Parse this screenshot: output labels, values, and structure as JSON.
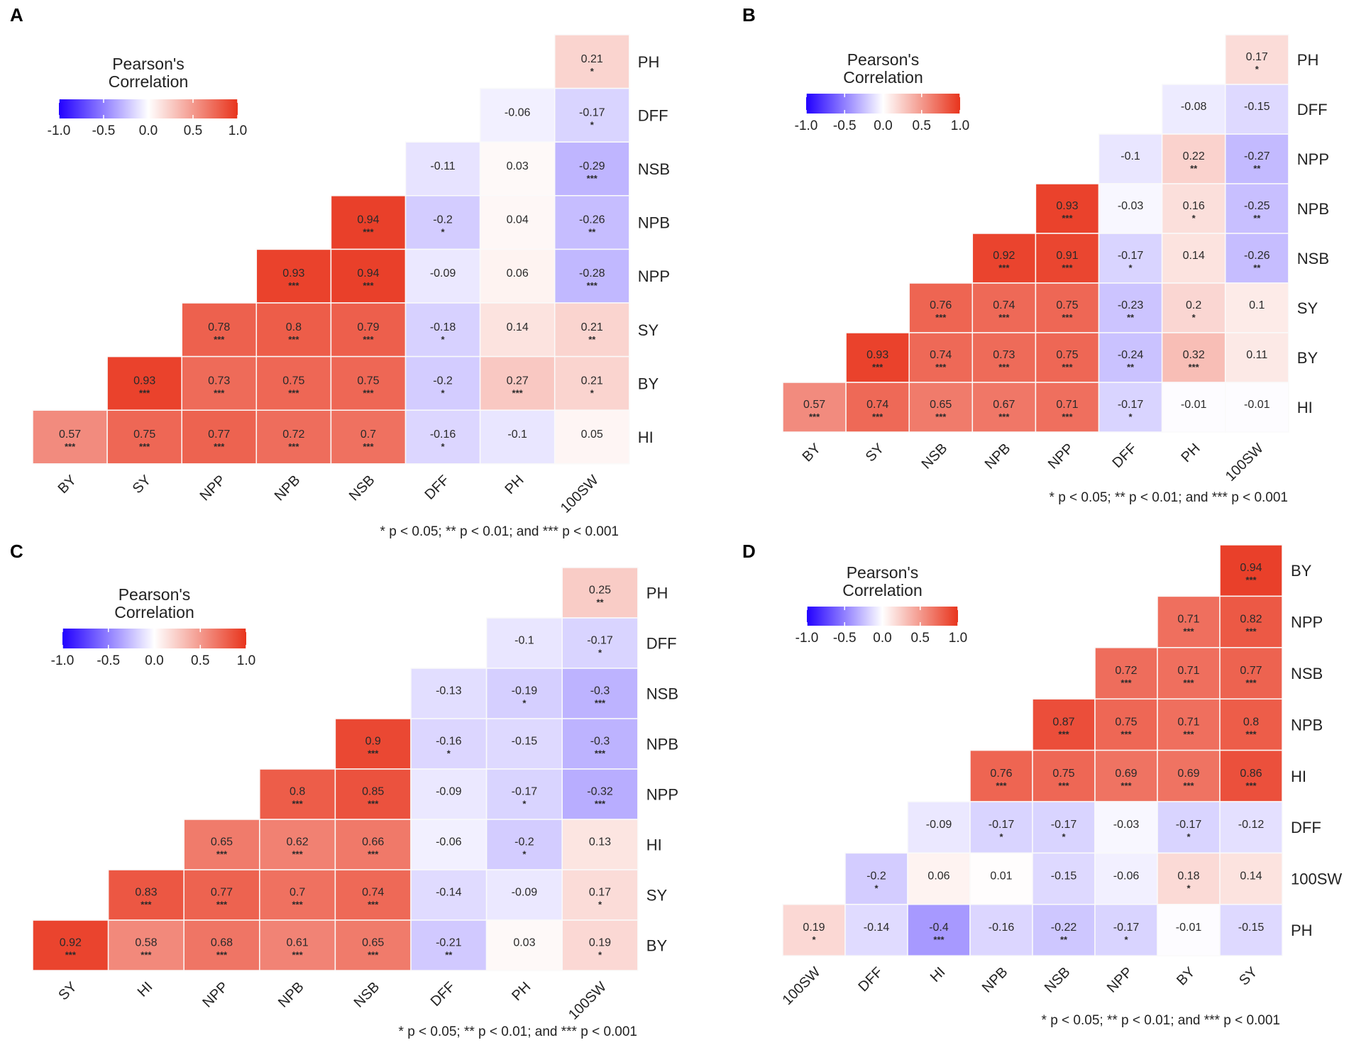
{
  "colors": {
    "negative": "#2200ff",
    "zero": "#ffffff",
    "positive": "#e8341c"
  },
  "chart_data": [
    {
      "type": "heatmap",
      "panel_label": "A",
      "legend_title_line1": "Pearson's",
      "legend_title_line2": "Correlation",
      "legend_ticks": [
        "-1.0",
        "-0.5",
        "0.0",
        "0.5",
        "1.0"
      ],
      "legend_range": [
        -1,
        1
      ],
      "footnote": "* p < 0.05; ** p < 0.01; and *** p < 0.001",
      "x_labels": [
        "BY",
        "SY",
        "NPP",
        "NPB",
        "NSB",
        "DFF",
        "PH",
        "100SW"
      ],
      "y_labels": [
        "PH",
        "DFF",
        "NSB",
        "NPB",
        "NPP",
        "SY",
        "BY",
        "HI"
      ],
      "values": [
        [
          "0.21"
        ],
        [
          "-0.06",
          "-0.17"
        ],
        [
          "-0.11",
          "0.03",
          "-0.29"
        ],
        [
          "0.94",
          "-0.2",
          "0.04",
          "-0.26"
        ],
        [
          "0.93",
          "0.94",
          "-0.09",
          "0.06",
          "-0.28"
        ],
        [
          "0.78",
          "0.8",
          "0.79",
          "-0.18",
          "0.14",
          "0.21"
        ],
        [
          "0.93",
          "0.73",
          "0.75",
          "0.75",
          "-0.2",
          "0.27",
          "0.21"
        ],
        [
          "0.57",
          "0.75",
          "0.77",
          "0.72",
          "0.7",
          "-0.16",
          "-0.1",
          "0.05"
        ]
      ],
      "stars": [
        [
          "*"
        ],
        [
          "",
          "*"
        ],
        [
          "",
          "",
          "***"
        ],
        [
          "***",
          "*",
          "",
          "**"
        ],
        [
          "***",
          "***",
          "",
          "",
          "***"
        ],
        [
          "***",
          "***",
          "***",
          "*",
          "",
          "**"
        ],
        [
          "***",
          "***",
          "***",
          "***",
          "*",
          "***",
          "*"
        ],
        [
          "***",
          "***",
          "***",
          "***",
          "***",
          "*",
          "",
          ""
        ]
      ]
    },
    {
      "type": "heatmap",
      "panel_label": "B",
      "legend_title_line1": "Pearson's",
      "legend_title_line2": "Correlation",
      "legend_ticks": [
        "-1.0",
        "-0.5",
        "0.0",
        "0.5",
        "1.0"
      ],
      "legend_range": [
        -1,
        1
      ],
      "footnote": "* p < 0.05; ** p < 0.01; and *** p < 0.001",
      "x_labels": [
        "BY",
        "SY",
        "NSB",
        "NPB",
        "NPP",
        "DFF",
        "PH",
        "100SW"
      ],
      "y_labels": [
        "PH",
        "DFF",
        "NPP",
        "NPB",
        "NSB",
        "SY",
        "BY",
        "HI"
      ],
      "values": [
        [
          "0.17"
        ],
        [
          "-0.08",
          "-0.15"
        ],
        [
          "-0.1",
          "0.22",
          "-0.27"
        ],
        [
          "0.93",
          "-0.03",
          "0.16",
          "-0.25"
        ],
        [
          "0.92",
          "0.91",
          "-0.17",
          "0.14",
          "-0.26"
        ],
        [
          "0.76",
          "0.74",
          "0.75",
          "-0.23",
          "0.2",
          "0.1"
        ],
        [
          "0.93",
          "0.74",
          "0.73",
          "0.75",
          "-0.24",
          "0.32",
          "0.11"
        ],
        [
          "0.57",
          "0.74",
          "0.65",
          "0.67",
          "0.71",
          "-0.17",
          "-0.01",
          "-0.01"
        ]
      ],
      "stars": [
        [
          "*"
        ],
        [
          "",
          ""
        ],
        [
          "",
          "**",
          "**"
        ],
        [
          "***",
          "",
          "*",
          "**"
        ],
        [
          "***",
          "***",
          "*",
          "",
          "**"
        ],
        [
          "***",
          "***",
          "***",
          "**",
          "*",
          ""
        ],
        [
          "***",
          "***",
          "***",
          "***",
          "**",
          "***",
          ""
        ],
        [
          "***",
          "***",
          "***",
          "***",
          "***",
          "*",
          "",
          ""
        ]
      ]
    },
    {
      "type": "heatmap",
      "panel_label": "C",
      "legend_title_line1": "Pearson's",
      "legend_title_line2": "Correlation",
      "legend_ticks": [
        "-1.0",
        "-0.5",
        "0.0",
        "0.5",
        "1.0"
      ],
      "legend_range": [
        -1,
        1
      ],
      "footnote": "* p < 0.05; ** p < 0.01; and *** p < 0.001",
      "x_labels": [
        "SY",
        "HI",
        "NPP",
        "NPB",
        "NSB",
        "DFF",
        "PH",
        "100SW"
      ],
      "y_labels": [
        "PH",
        "DFF",
        "NSB",
        "NPB",
        "NPP",
        "HI",
        "SY",
        "BY"
      ],
      "values": [
        [
          "0.25"
        ],
        [
          "-0.1",
          "-0.17"
        ],
        [
          "-0.13",
          "-0.19",
          "-0.3"
        ],
        [
          "0.9",
          "-0.16",
          "-0.15",
          "-0.3"
        ],
        [
          "0.8",
          "0.85",
          "-0.09",
          "-0.17",
          "-0.32"
        ],
        [
          "0.65",
          "0.62",
          "0.66",
          "-0.06",
          "-0.2",
          "0.13"
        ],
        [
          "0.83",
          "0.77",
          "0.7",
          "0.74",
          "-0.14",
          "-0.09",
          "0.17"
        ],
        [
          "0.92",
          "0.58",
          "0.68",
          "0.61",
          "0.65",
          "-0.21",
          "0.03",
          "0.19"
        ]
      ],
      "stars": [
        [
          "**"
        ],
        [
          "",
          "*"
        ],
        [
          "",
          "*",
          "***"
        ],
        [
          "***",
          "*",
          "",
          "***"
        ],
        [
          "***",
          "***",
          "",
          "*",
          "***"
        ],
        [
          "***",
          "***",
          "***",
          "",
          "*",
          ""
        ],
        [
          "***",
          "***",
          "***",
          "***",
          "",
          "",
          "*"
        ],
        [
          "***",
          "***",
          "***",
          "***",
          "***",
          "**",
          "",
          "*"
        ]
      ]
    },
    {
      "type": "heatmap",
      "panel_label": "D",
      "legend_title_line1": "Pearson's",
      "legend_title_line2": "Correlation",
      "legend_ticks": [
        "-1.0",
        "-0.5",
        "0.0",
        "0.5",
        "1.0"
      ],
      "legend_range": [
        -1,
        1
      ],
      "footnote": "* p < 0.05; ** p < 0.01; and *** p < 0.001",
      "x_labels": [
        "100SW",
        "DFF",
        "HI",
        "NPB",
        "NSB",
        "NPP",
        "BY",
        "SY"
      ],
      "y_labels": [
        "BY",
        "NPP",
        "NSB",
        "NPB",
        "HI",
        "DFF",
        "100SW",
        "PH"
      ],
      "values": [
        [
          "0.94"
        ],
        [
          "0.71",
          "0.82"
        ],
        [
          "0.72",
          "0.71",
          "0.77"
        ],
        [
          "0.87",
          "0.75",
          "0.71",
          "0.8"
        ],
        [
          "0.76",
          "0.75",
          "0.69",
          "0.69",
          "0.86"
        ],
        [
          "-0.09",
          "-0.17",
          "-0.17",
          "-0.03",
          "-0.17",
          "-0.12"
        ],
        [
          "-0.2",
          "0.06",
          "0.01",
          "-0.15",
          "-0.06",
          "0.18",
          "0.14"
        ],
        [
          "0.19",
          "-0.14",
          "-0.4",
          "-0.16",
          "-0.22",
          "-0.17",
          "-0.01",
          "-0.15"
        ]
      ],
      "stars": [
        [
          "***"
        ],
        [
          "***",
          "***"
        ],
        [
          "***",
          "***",
          "***"
        ],
        [
          "***",
          "***",
          "***",
          "***"
        ],
        [
          "***",
          "***",
          "***",
          "***",
          "***"
        ],
        [
          "",
          "*",
          "*",
          "",
          "*",
          ""
        ],
        [
          "*",
          "",
          "",
          "",
          "",
          "*",
          ""
        ],
        [
          "*",
          "",
          "***",
          "",
          "**",
          "*",
          "",
          ""
        ]
      ]
    }
  ]
}
